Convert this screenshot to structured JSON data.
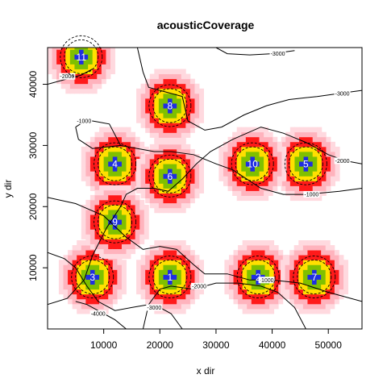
{
  "chart_data": {
    "type": "heatmap",
    "title": "acousticCoverage",
    "xlabel": "x dir",
    "ylabel": "y dir",
    "xlim": [
      0,
      56000
    ],
    "ylim": [
      0,
      46000
    ],
    "x_ticks": [
      10000,
      20000,
      30000,
      40000,
      50000
    ],
    "y_ticks": [
      10000,
      20000,
      30000,
      40000
    ],
    "grid": false,
    "colors": {
      "cell_outer": "#ffd9df",
      "cell_mid": "#ffb3bd",
      "ring_red": "#ff1a1a",
      "ring_yellow": "#ffe000",
      "ring_green": "#7fc000",
      "center": "#1f2fe0",
      "contour": "#000000",
      "axis": "#000000"
    },
    "receivers": [
      {
        "id": "1",
        "x": 21800,
        "y": 8500
      },
      {
        "id": "2",
        "x": 37500,
        "y": 8500
      },
      {
        "id": "3",
        "x": 8000,
        "y": 8500
      },
      {
        "id": "4",
        "x": 12000,
        "y": 27000
      },
      {
        "id": "5",
        "x": 46000,
        "y": 27000
      },
      {
        "id": "6",
        "x": 21800,
        "y": 25000
      },
      {
        "id": "7",
        "x": 47500,
        "y": 8500
      },
      {
        "id": "8",
        "x": 21800,
        "y": 36500
      },
      {
        "id": "9",
        "x": 12000,
        "y": 17500
      },
      {
        "id": "10",
        "x": 36500,
        "y": 27000
      },
      {
        "id": "11",
        "x": 6000,
        "y": 44500
      }
    ],
    "contours": [
      {
        "level": "-1000",
        "points": [
          [
            0,
            21500
          ],
          [
            5000,
            20500
          ],
          [
            10000,
            18500
          ],
          [
            14000,
            15000
          ],
          [
            17000,
            13000
          ],
          [
            20000,
            13500
          ],
          [
            23000,
            13000
          ],
          [
            26000,
            10500
          ],
          [
            28000,
            9000
          ],
          [
            32000,
            9000
          ],
          [
            36000,
            8000
          ],
          [
            40000,
            8000
          ],
          [
            45000,
            7500
          ],
          [
            50000,
            6000
          ],
          [
            56000,
            4500
          ]
        ],
        "label_at": [
          39000,
          8000
        ]
      },
      {
        "level": "-1000",
        "points": [
          [
            5000,
            33000
          ],
          [
            5500,
            31000
          ],
          [
            8000,
            29500
          ],
          [
            13000,
            30000
          ],
          [
            16000,
            29500
          ],
          [
            19000,
            29000
          ],
          [
            22000,
            29000
          ],
          [
            26000,
            28500
          ],
          [
            30000,
            27000
          ],
          [
            33000,
            26000
          ],
          [
            38000,
            23000
          ],
          [
            42000,
            22000
          ],
          [
            46000,
            22000
          ],
          [
            52000,
            22500
          ],
          [
            56000,
            23000
          ]
        ],
        "label_at": [
          47000,
          22000
        ]
      },
      {
        "level": "-1000",
        "points": [
          [
            5000,
            33000
          ],
          [
            6000,
            33600
          ],
          [
            8000,
            34000
          ],
          [
            11000,
            33500
          ],
          [
            13000,
            30000
          ]
        ],
        "label_at": [
          6500,
          34000
        ]
      },
      {
        "level": "-2000",
        "points": [
          [
            0,
            4000
          ],
          [
            3500,
            5000
          ],
          [
            6500,
            8000
          ],
          [
            8000,
            12000
          ],
          [
            10500,
            16500
          ],
          [
            13000,
            20000
          ],
          [
            14000,
            22000
          ],
          [
            16000,
            23000
          ],
          [
            19000,
            23000
          ],
          [
            21500,
            22500
          ],
          [
            24000,
            24500
          ],
          [
            26500,
            27000
          ],
          [
            29000,
            29000
          ],
          [
            33000,
            31000
          ],
          [
            38000,
            33000
          ],
          [
            42000,
            32000
          ],
          [
            46000,
            30500
          ],
          [
            50000,
            28500
          ],
          [
            53000,
            27500
          ],
          [
            56000,
            27000
          ]
        ],
        "label_at": [
          52500,
          27500
        ]
      },
      {
        "level": "-2000",
        "points": [
          [
            0,
            40000
          ],
          [
            4000,
            41000
          ],
          [
            6000,
            41500
          ],
          [
            8000,
            42500
          ]
        ],
        "label_at": [
          3500,
          41300
        ]
      },
      {
        "level": "-2000",
        "points": [
          [
            17000,
            0
          ],
          [
            18000,
            4000
          ],
          [
            20000,
            6500
          ],
          [
            22000,
            7000
          ],
          [
            26000,
            6500
          ],
          [
            28000,
            7000
          ],
          [
            30000,
            7500
          ],
          [
            34000,
            7500
          ],
          [
            38000,
            7000
          ],
          [
            41000,
            6000
          ],
          [
            44000,
            3500
          ],
          [
            46000,
            0
          ]
        ],
        "label_at": [
          27000,
          7000
        ]
      },
      {
        "level": "-3000",
        "points": [
          [
            0,
            12500
          ],
          [
            3000,
            11500
          ],
          [
            5000,
            10000
          ],
          [
            7000,
            7000
          ],
          [
            9000,
            4500
          ],
          [
            12000,
            3000
          ],
          [
            15000,
            3500
          ],
          [
            18000,
            4000
          ],
          [
            20000,
            3500
          ],
          [
            22000,
            2500
          ],
          [
            24000,
            0
          ]
        ],
        "label_at": [
          19000,
          3500
        ]
      },
      {
        "level": "-3000",
        "points": [
          [
            16000,
            46000
          ],
          [
            17000,
            42000
          ],
          [
            18000,
            39500
          ],
          [
            20000,
            39000
          ],
          [
            24000,
            38000
          ],
          [
            25000,
            34000
          ],
          [
            28000,
            32500
          ],
          [
            31000,
            33000
          ],
          [
            35000,
            35000
          ],
          [
            39000,
            36500
          ],
          [
            43000,
            37500
          ],
          [
            48000,
            38000
          ],
          [
            52000,
            38500
          ],
          [
            56000,
            39000
          ]
        ],
        "label_at": [
          52500,
          38500
        ]
      },
      {
        "level": "-3000",
        "points": [
          [
            30000,
            46000
          ],
          [
            32000,
            45000
          ],
          [
            36000,
            44800
          ],
          [
            40000,
            45000
          ],
          [
            44000,
            45500
          ]
        ],
        "label_at": [
          41000,
          45000
        ]
      },
      {
        "level": "-4000",
        "points": [
          [
            5000,
            4500
          ],
          [
            7000,
            4000
          ],
          [
            10000,
            2500
          ],
          [
            12000,
            1500
          ],
          [
            14000,
            0
          ]
        ],
        "label_at": [
          9000,
          2500
        ]
      }
    ]
  }
}
